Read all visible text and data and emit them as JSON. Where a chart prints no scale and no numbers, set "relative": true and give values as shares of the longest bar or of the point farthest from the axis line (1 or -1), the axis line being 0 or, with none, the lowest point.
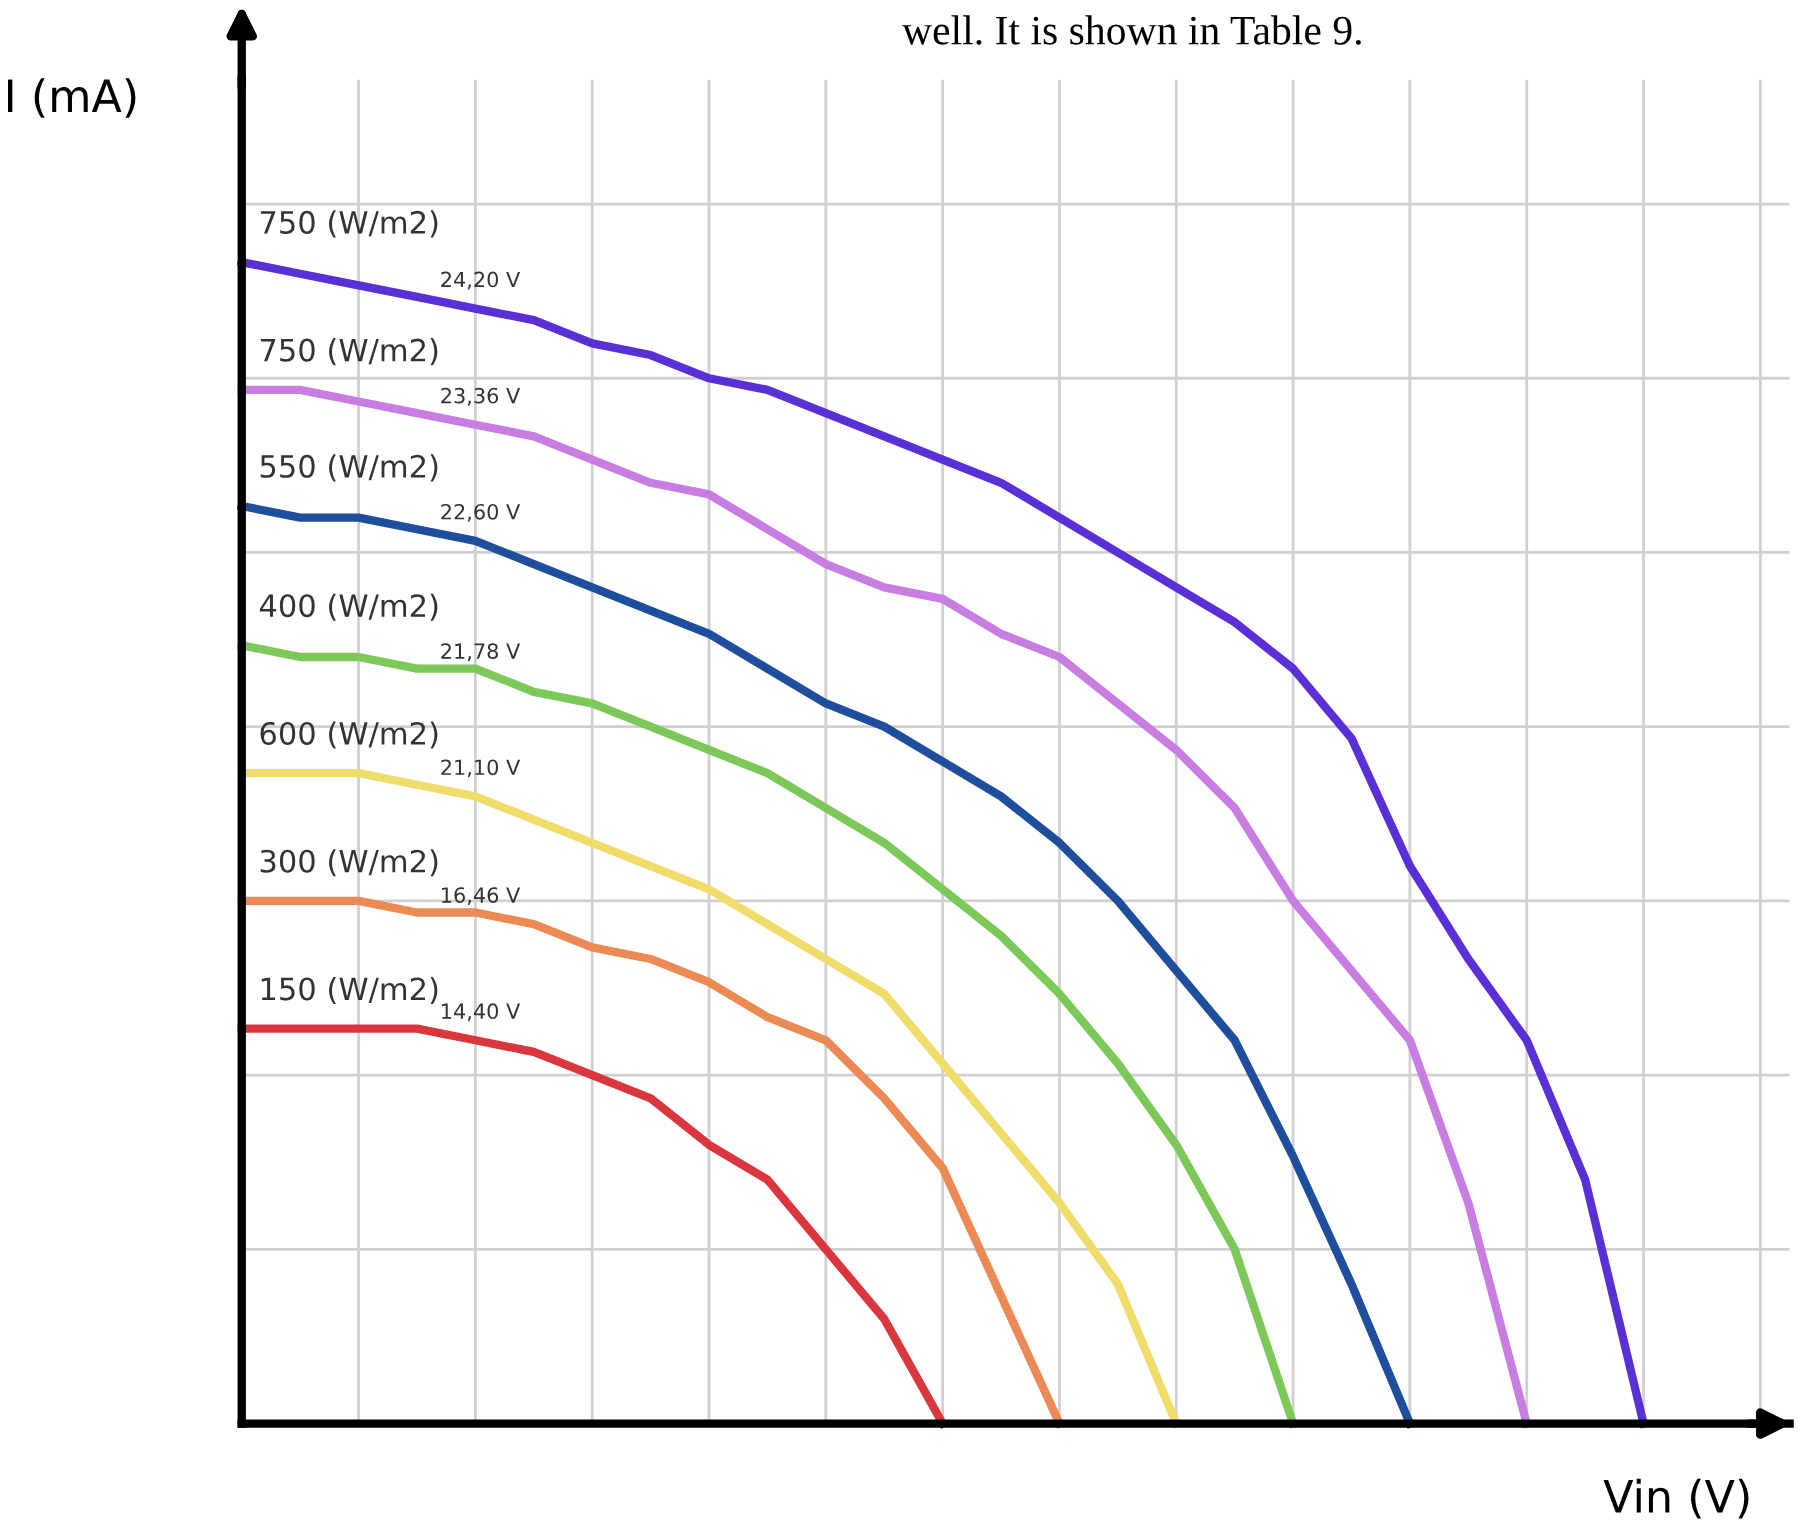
{
  "chart_data": {
    "type": "line",
    "relative": true,
    "xlabel": "Vin (V)",
    "ylabel": "I (mA)",
    "grid": true,
    "legend": false,
    "marker": "none",
    "line_style": "solid",
    "categories": [
      null,
      null,
      null,
      null,
      null,
      null,
      null,
      null,
      null,
      null,
      null,
      null,
      null,
      null,
      null,
      null,
      null,
      null,
      null,
      null,
      null,
      null,
      null,
      null,
      null,
      null,
      null
    ],
    "series": [
      {
        "name": "750 (W/m2)",
        "color": "#5b2fd6",
        "values": [
          1.0,
          0.99,
          0.98,
          0.97,
          0.96,
          0.95,
          0.93,
          0.92,
          0.9,
          0.89,
          0.87,
          0.85,
          0.83,
          0.81,
          0.78,
          0.75,
          0.72,
          0.69,
          0.65,
          0.59,
          0.48,
          0.4,
          0.33,
          0.21,
          0,
          null,
          null
        ]
      },
      {
        "name": "750 (W/m2)",
        "color": "#c77ee0",
        "values": [
          0.89,
          0.89,
          0.88,
          0.87,
          0.86,
          0.85,
          0.83,
          0.81,
          0.8,
          0.77,
          0.74,
          0.72,
          0.71,
          0.68,
          0.66,
          0.62,
          0.58,
          0.53,
          0.45,
          0.39,
          0.33,
          0.19,
          0,
          null,
          null,
          null,
          null
        ]
      },
      {
        "name": "550 (W/m2)",
        "color": "#1f4e9c",
        "values": [
          0.79,
          0.78,
          0.78,
          0.77,
          0.76,
          0.74,
          0.72,
          0.7,
          0.68,
          0.65,
          0.62,
          0.6,
          0.57,
          0.54,
          0.5,
          0.45,
          0.39,
          0.33,
          0.23,
          0.12,
          0,
          null,
          null,
          null,
          null,
          null,
          null
        ]
      },
      {
        "name": "400 (W/m2)",
        "color": "#7cc95a",
        "values": [
          0.67,
          0.66,
          0.66,
          0.65,
          0.65,
          0.63,
          0.62,
          0.6,
          0.58,
          0.56,
          0.53,
          0.5,
          0.46,
          0.42,
          0.37,
          0.31,
          0.24,
          0.15,
          0,
          null,
          null,
          null,
          null,
          null,
          null,
          null,
          null
        ]
      },
      {
        "name": "600 (W/m2)",
        "color": "#f0dc6a",
        "values": [
          0.56,
          0.56,
          0.56,
          0.55,
          0.54,
          0.52,
          0.5,
          0.48,
          0.46,
          0.43,
          0.4,
          0.37,
          0.31,
          0.25,
          0.19,
          0.12,
          0,
          null,
          null,
          null,
          null,
          null,
          null,
          null,
          null,
          null,
          null
        ]
      },
      {
        "name": "300 (W/m2)",
        "color": "#ec8a55",
        "values": [
          0.45,
          0.45,
          0.45,
          0.44,
          0.44,
          0.43,
          0.41,
          0.4,
          0.38,
          0.35,
          0.33,
          0.28,
          0.22,
          0.11,
          0,
          null,
          null,
          null,
          null,
          null,
          null,
          null,
          null,
          null,
          null,
          null,
          null
        ]
      },
      {
        "name": "150 (W/m2)",
        "color": "#d9363e",
        "values": [
          0.34,
          0.34,
          0.34,
          0.34,
          0.33,
          0.32,
          0.3,
          0.28,
          0.24,
          0.21,
          0.15,
          0.09,
          0,
          null,
          null,
          null,
          null,
          null,
          null,
          null,
          null,
          null,
          null,
          null,
          null,
          null,
          null
        ]
      }
    ],
    "annotations": [
      "24,20 V",
      "23,36 V",
      "22,60 V",
      "21,78 V",
      "21,10 V",
      "16,46 V",
      "14,40 V",
      "well. It is shown in Table 9."
    ]
  }
}
